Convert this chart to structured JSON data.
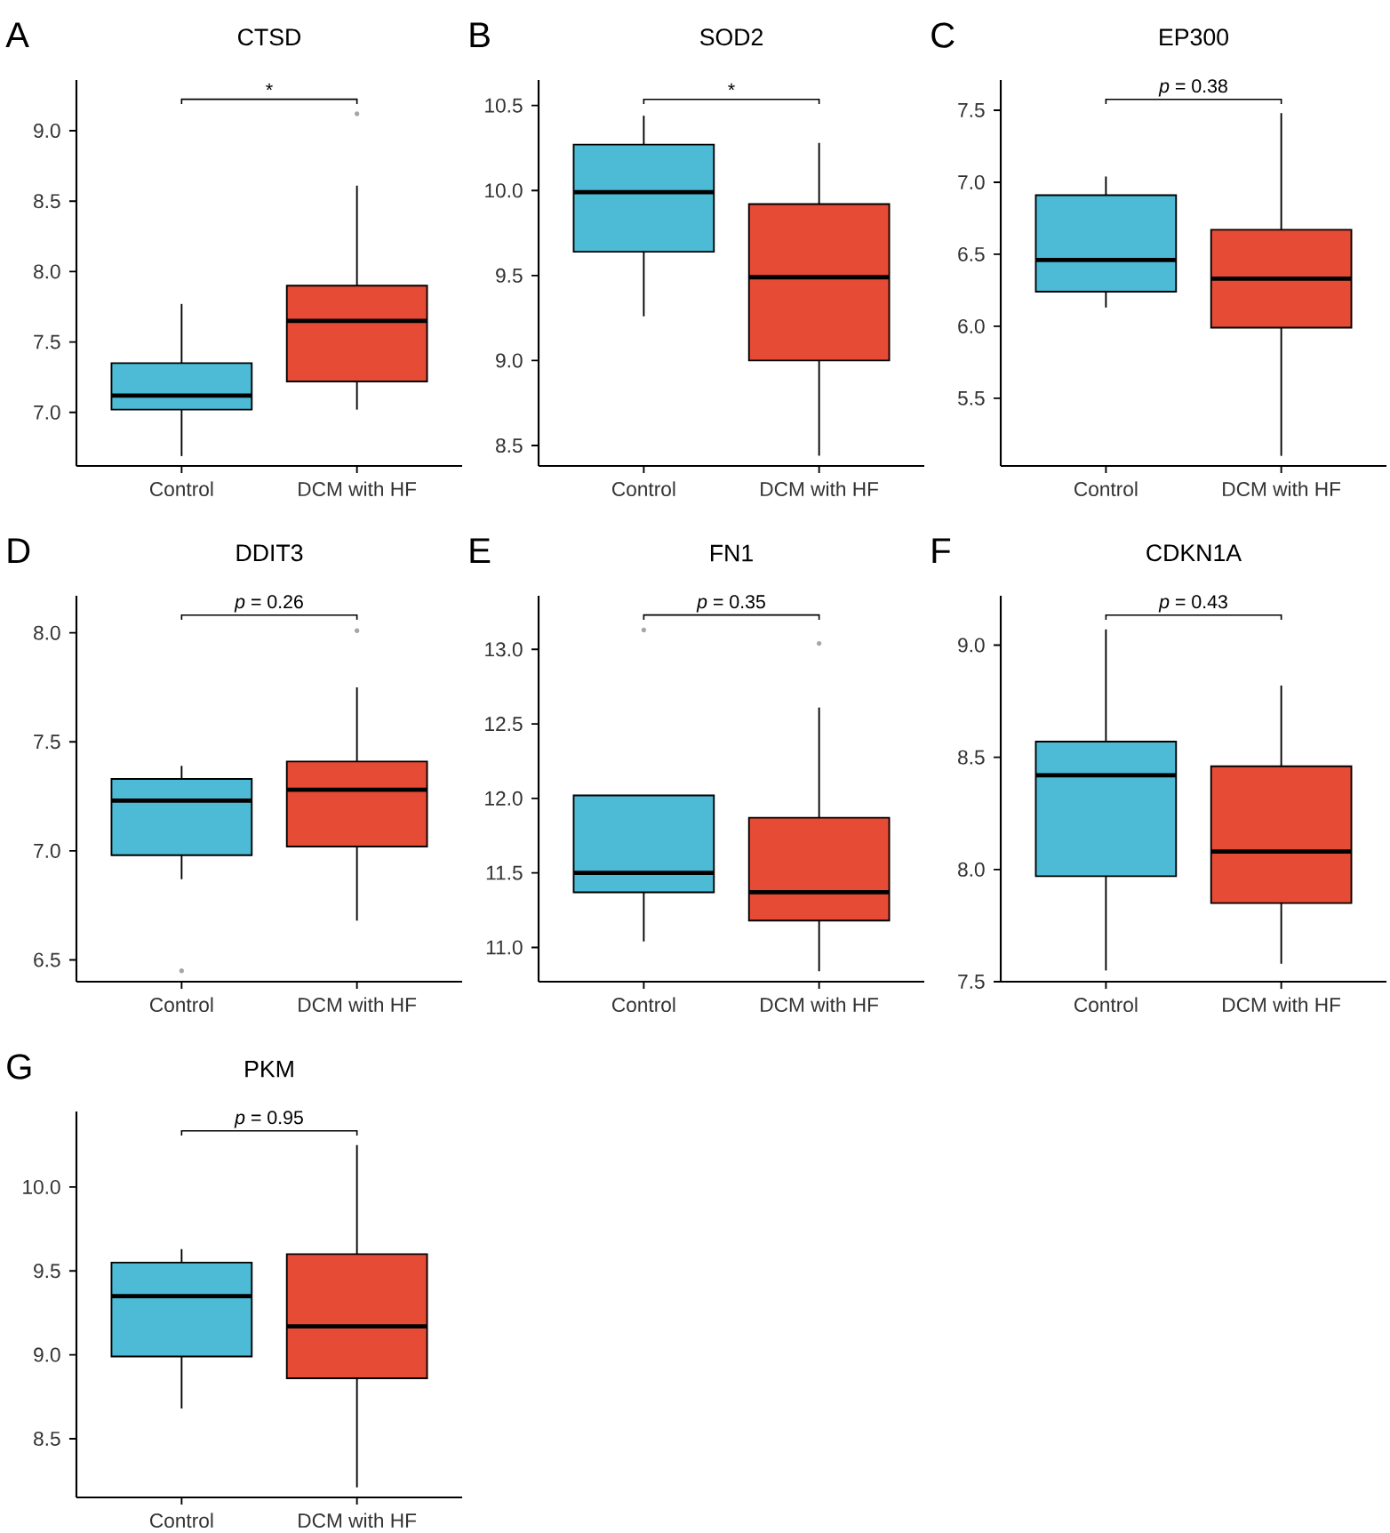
{
  "chart_data": [
    {
      "type": "box",
      "title": "CTSD",
      "categories": [
        "Control",
        "DCM with HF"
      ],
      "colors": [
        "#4dbbd5",
        "#e64b35"
      ],
      "ylim": [
        6.62,
        9.36
      ],
      "yticks": [
        {
          "value": 7,
          "label": "7.0"
        },
        7.5,
        {
          "value": 8,
          "label": "8.0"
        },
        8.5,
        {
          "value": 9,
          "label": "9.0"
        }
      ],
      "annotations": [
        "A",
        "*"
      ],
      "boxes": [
        {
          "low": 6.69,
          "q1": 7.02,
          "median": 7.12,
          "q3": 7.35,
          "high": 7.77
        },
        {
          "low": 7.02,
          "q1": 7.22,
          "median": 7.65,
          "q3": 7.9,
          "high": 8.61,
          "outliers": [
            9.12
          ]
        }
      ]
    },
    {
      "type": "box",
      "title": "SOD2",
      "categories": [
        "Control",
        "DCM with HF"
      ],
      "colors": [
        "#4dbbd5",
        "#e64b35"
      ],
      "ylim": [
        8.38,
        10.65
      ],
      "yticks": [
        8.5,
        {
          "value": 9,
          "label": "9.0"
        },
        9.5,
        {
          "value": 10,
          "label": "10.0"
        },
        10.5
      ],
      "annotations": [
        "B",
        "*"
      ],
      "boxes": [
        {
          "low": 9.26,
          "q1": 9.64,
          "median": 9.99,
          "q3": 10.27,
          "high": 10.44
        },
        {
          "low": 8.44,
          "q1": 9.0,
          "median": 9.49,
          "q3": 9.92,
          "high": 10.28
        }
      ]
    },
    {
      "type": "box",
      "title": "EP300",
      "categories": [
        "Control",
        "DCM with HF"
      ],
      "colors": [
        "#4dbbd5",
        "#e64b35"
      ],
      "ylim": [
        5.03,
        7.71
      ],
      "yticks": [
        5.5,
        {
          "value": 6,
          "label": "6.0"
        },
        6.5,
        {
          "value": 7,
          "label": "7.0"
        },
        7.5
      ],
      "annotations": [
        "C",
        "*p* = 0.38"
      ],
      "boxes": [
        {
          "low": 6.13,
          "q1": 6.24,
          "median": 6.46,
          "q3": 6.91,
          "high": 7.04
        },
        {
          "low": 5.1,
          "q1": 5.99,
          "median": 6.33,
          "q3": 6.67,
          "high": 7.48
        }
      ]
    },
    {
      "type": "box",
      "title": "DDIT3",
      "categories": [
        "Control",
        "DCM with HF"
      ],
      "colors": [
        "#4dbbd5",
        "#e64b35"
      ],
      "ylim": [
        6.4,
        8.17
      ],
      "yticks": [
        6.5,
        {
          "value": 7,
          "label": "7.0"
        },
        7.5,
        {
          "value": 8,
          "label": "8.0"
        }
      ],
      "annotations": [
        "D",
        "*p* = 0.26"
      ],
      "boxes": [
        {
          "low": 6.87,
          "q1": 6.98,
          "median": 7.23,
          "q3": 7.33,
          "high": 7.39,
          "outliers": [
            6.45
          ]
        },
        {
          "low": 6.68,
          "q1": 7.02,
          "median": 7.28,
          "q3": 7.41,
          "high": 7.75,
          "outliers": [
            8.01
          ]
        }
      ]
    },
    {
      "type": "box",
      "title": "FN1",
      "categories": [
        "Control",
        "DCM with HF"
      ],
      "colors": [
        "#4dbbd5",
        "#e64b35"
      ],
      "ylim": [
        10.77,
        13.36
      ],
      "yticks": [
        {
          "value": 11,
          "label": "11.0"
        },
        11.5,
        {
          "value": 12,
          "label": "12.0"
        },
        12.5,
        {
          "value": 13,
          "label": "13.0"
        }
      ],
      "annotations": [
        "E",
        "*p* = 0.35"
      ],
      "boxes": [
        {
          "low": 11.04,
          "q1": 11.37,
          "median": 11.5,
          "q3": 12.02,
          "high": 12.02,
          "outliers": [
            13.13
          ]
        },
        {
          "low": 10.84,
          "q1": 11.18,
          "median": 11.37,
          "q3": 11.87,
          "high": 12.61,
          "outliers": [
            13.04
          ]
        }
      ]
    },
    {
      "type": "box",
      "title": "CDKN1A",
      "categories": [
        "Control",
        "DCM with HF"
      ],
      "colors": [
        "#4dbbd5",
        "#e64b35"
      ],
      "ylim": [
        7.5,
        9.22
      ],
      "yticks": [
        7.5,
        {
          "value": 8,
          "label": "8.0"
        },
        8.5,
        {
          "value": 9,
          "label": "9.0"
        }
      ],
      "annotations": [
        "F",
        "*p* = 0.43"
      ],
      "boxes": [
        {
          "low": 7.55,
          "q1": 7.97,
          "median": 8.42,
          "q3": 8.57,
          "high": 9.07
        },
        {
          "low": 7.58,
          "q1": 7.85,
          "median": 8.08,
          "q3": 8.46,
          "high": 8.82
        }
      ]
    },
    {
      "type": "box",
      "title": "PKM",
      "categories": [
        "Control",
        "DCM with HF"
      ],
      "colors": [
        "#4dbbd5",
        "#e64b35"
      ],
      "ylim": [
        8.15,
        10.45
      ],
      "yticks": [
        8.5,
        {
          "value": 9,
          "label": "9.0"
        },
        9.5,
        {
          "value": 10,
          "label": "10.0"
        }
      ],
      "annotations": [
        "G",
        "*p* = 0.95"
      ],
      "boxes": [
        {
          "low": 8.68,
          "q1": 8.99,
          "median": 9.35,
          "q3": 9.55,
          "high": 9.63
        },
        {
          "low": 8.21,
          "q1": 8.86,
          "median": 9.17,
          "q3": 9.6,
          "high": 10.25
        }
      ]
    }
  ]
}
